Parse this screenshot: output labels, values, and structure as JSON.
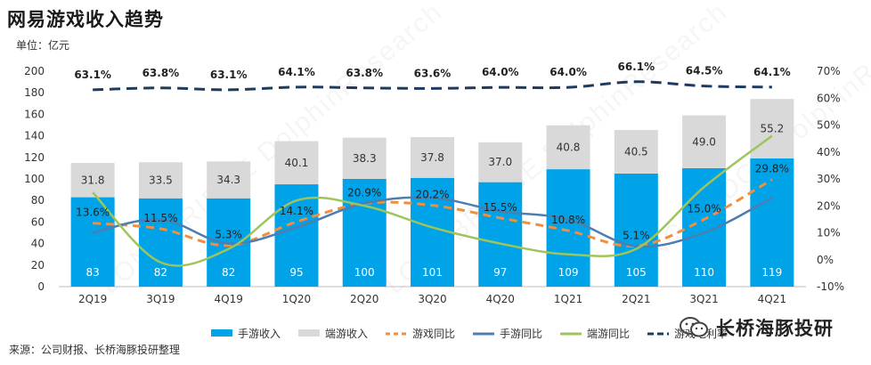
{
  "title": "网易游戏收入趋势",
  "unit_label": "单位：亿元",
  "source": "来源：公司财报、长桥海豚投研整理",
  "brand": "长桥海豚投研",
  "watermark": "LONGBRIDGE DolphinResearch",
  "chart_data": {
    "type": "bar",
    "categories": [
      "2Q19",
      "3Q19",
      "4Q19",
      "1Q20",
      "2Q20",
      "3Q20",
      "4Q20",
      "1Q21",
      "2Q21",
      "3Q21",
      "4Q21"
    ],
    "y_left": {
      "min": 0,
      "max": 200,
      "step": 20
    },
    "y_right": {
      "min": -10,
      "max": 70,
      "step": 10,
      "suffix": "%"
    },
    "series": [
      {
        "name": "手游收入",
        "kind": "bar",
        "color": "#00a2e8",
        "axis": "left",
        "values": [
          83,
          82,
          82,
          95,
          100,
          101,
          97,
          109,
          105,
          110,
          119
        ],
        "labels": [
          "83",
          "82",
          "82",
          "95",
          "100",
          "101",
          "97",
          "109",
          "105",
          "110",
          "119"
        ]
      },
      {
        "name": "端游收入",
        "kind": "bar",
        "color": "#d9d9d9",
        "axis": "left",
        "values": [
          31.8,
          33.5,
          34.3,
          40.1,
          38.3,
          37.8,
          37.0,
          40.8,
          40.5,
          49.0,
          55.2
        ],
        "labels": [
          "31.8",
          "33.5",
          "34.3",
          "40.1",
          "38.3",
          "37.8",
          "37.0",
          "40.8",
          "40.5",
          "49.0",
          "55.2"
        ]
      },
      {
        "name": "游戏同比",
        "kind": "line",
        "style": "dash",
        "color": "#f28e3c",
        "axis": "right",
        "values": [
          13.6,
          11.5,
          5.3,
          14.1,
          20.9,
          20.2,
          15.5,
          10.8,
          5.1,
          15.0,
          29.8
        ],
        "labels": [
          "13.6%",
          "11.5%",
          "5.3%",
          "14.1%",
          "20.9%",
          "20.2%",
          "15.5%",
          "10.8%",
          "5.1%",
          "15.0%",
          "29.8%"
        ]
      },
      {
        "name": "手游同比",
        "kind": "line",
        "style": "solid",
        "color": "#4d7eb0",
        "axis": "right",
        "values": [
          10,
          15,
          6,
          12,
          21,
          23,
          18,
          15,
          5,
          10,
          23
        ]
      },
      {
        "name": "端游同比",
        "kind": "line",
        "style": "solid",
        "color": "#9dc55b",
        "axis": "right",
        "values": [
          25,
          -1,
          4,
          22,
          20,
          12,
          6,
          2,
          4,
          27,
          46
        ]
      },
      {
        "name": "游戏毛利率",
        "kind": "line",
        "style": "bigdash",
        "color": "#1f3b60",
        "axis": "right",
        "values": [
          63.1,
          63.8,
          63.1,
          64.1,
          63.8,
          63.6,
          64.0,
          64.0,
          66.1,
          64.5,
          64.1
        ],
        "labels": [
          "63.1%",
          "63.8%",
          "63.1%",
          "64.1%",
          "63.8%",
          "63.6%",
          "64.0%",
          "64.0%",
          "66.1%",
          "64.5%",
          "64.1%"
        ]
      }
    ],
    "legend_position": "bottom",
    "grid": false
  }
}
